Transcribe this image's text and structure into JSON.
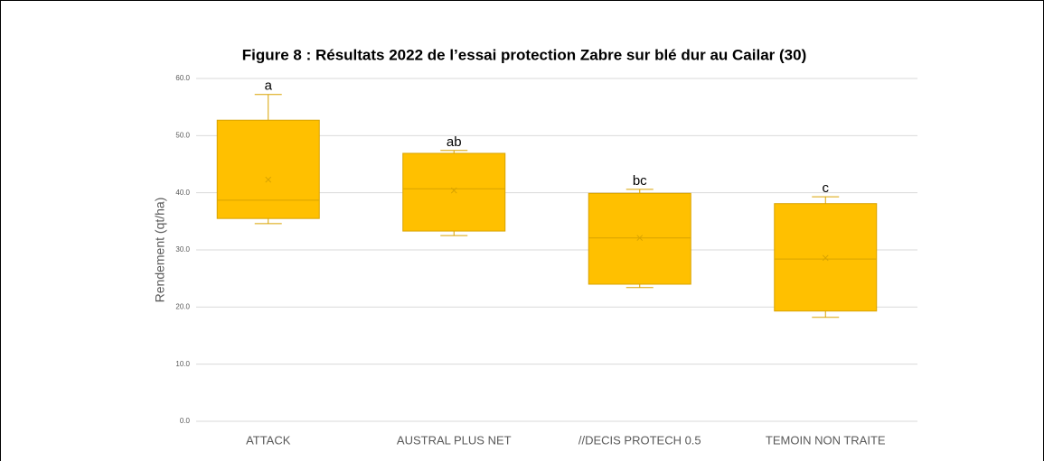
{
  "chart_data": {
    "type": "box",
    "title": "Figure 8 : Résultats 2022 de l’essai protection Zabre sur blé dur au Cailar (30)",
    "ylabel": "Rendement (qt/ha)",
    "categories": [
      "ATTACK",
      "AUSTRAL PLUS NET",
      "//DECIS PROTECH 0.5",
      "TEMOIN NON TRAITE"
    ],
    "boxes": [
      {
        "min": 34.6,
        "q1": 35.5,
        "median": 38.7,
        "q3": 52.7,
        "max": 57.2,
        "mean": 42.3
      },
      {
        "min": 32.5,
        "q1": 33.3,
        "median": 40.7,
        "q3": 46.9,
        "max": 47.4,
        "mean": 40.4
      },
      {
        "min": 23.4,
        "q1": 24.0,
        "median": 32.1,
        "q3": 39.9,
        "max": 40.6,
        "mean": 32.1
      },
      {
        "min": 18.2,
        "q1": 19.3,
        "median": 28.4,
        "q3": 38.1,
        "max": 39.3,
        "mean": 28.6
      }
    ],
    "annotations": [
      "a",
      "ab",
      "bc",
      "c"
    ],
    "color": "#ffc000",
    "ylim": [
      0,
      60
    ],
    "yticks": [
      {
        "value": 0,
        "label": "0.0"
      },
      {
        "value": 10,
        "label": "10.0"
      },
      {
        "value": 20,
        "label": "20.0"
      },
      {
        "value": 30,
        "label": "30.0"
      },
      {
        "value": 40,
        "label": "40.0"
      },
      {
        "value": 50,
        "label": "50.0"
      },
      {
        "value": 60,
        "label": "60.0"
      }
    ],
    "grid": true
  }
}
